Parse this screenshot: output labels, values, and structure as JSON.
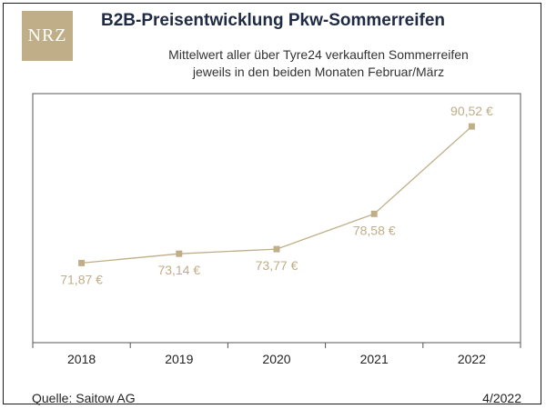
{
  "header": {
    "logo_text": "NRZ",
    "title": "B2B-Preisentwicklung Pkw-Sommerreifen",
    "subtitle_line1": "Mittelwert aller über Tyre24 verkauften Sommerreifen",
    "subtitle_line2": "jeweils in den beiden Monaten Februar/März"
  },
  "footer": {
    "source": "Quelle: Saitow AG",
    "date": "4/2022"
  },
  "colors": {
    "series": "#bfae88",
    "label": "#bfae88",
    "axis": "#555555",
    "title": "#1f2a44"
  },
  "chart_data": {
    "type": "line",
    "title": "B2B-Preisentwicklung Pkw-Sommerreifen",
    "xlabel": "",
    "ylabel": "",
    "categories": [
      "2018",
      "2019",
      "2020",
      "2021",
      "2022"
    ],
    "series": [
      {
        "values": [
          71.87,
          73.14,
          73.77,
          78.58,
          90.52
        ],
        "labels": [
          "71,87 €",
          "73,14 €",
          "73,77 €",
          "78,58 €",
          "90,52 €"
        ]
      }
    ],
    "ylim": [
      61,
      95
    ],
    "grid": false,
    "legend": "none"
  }
}
